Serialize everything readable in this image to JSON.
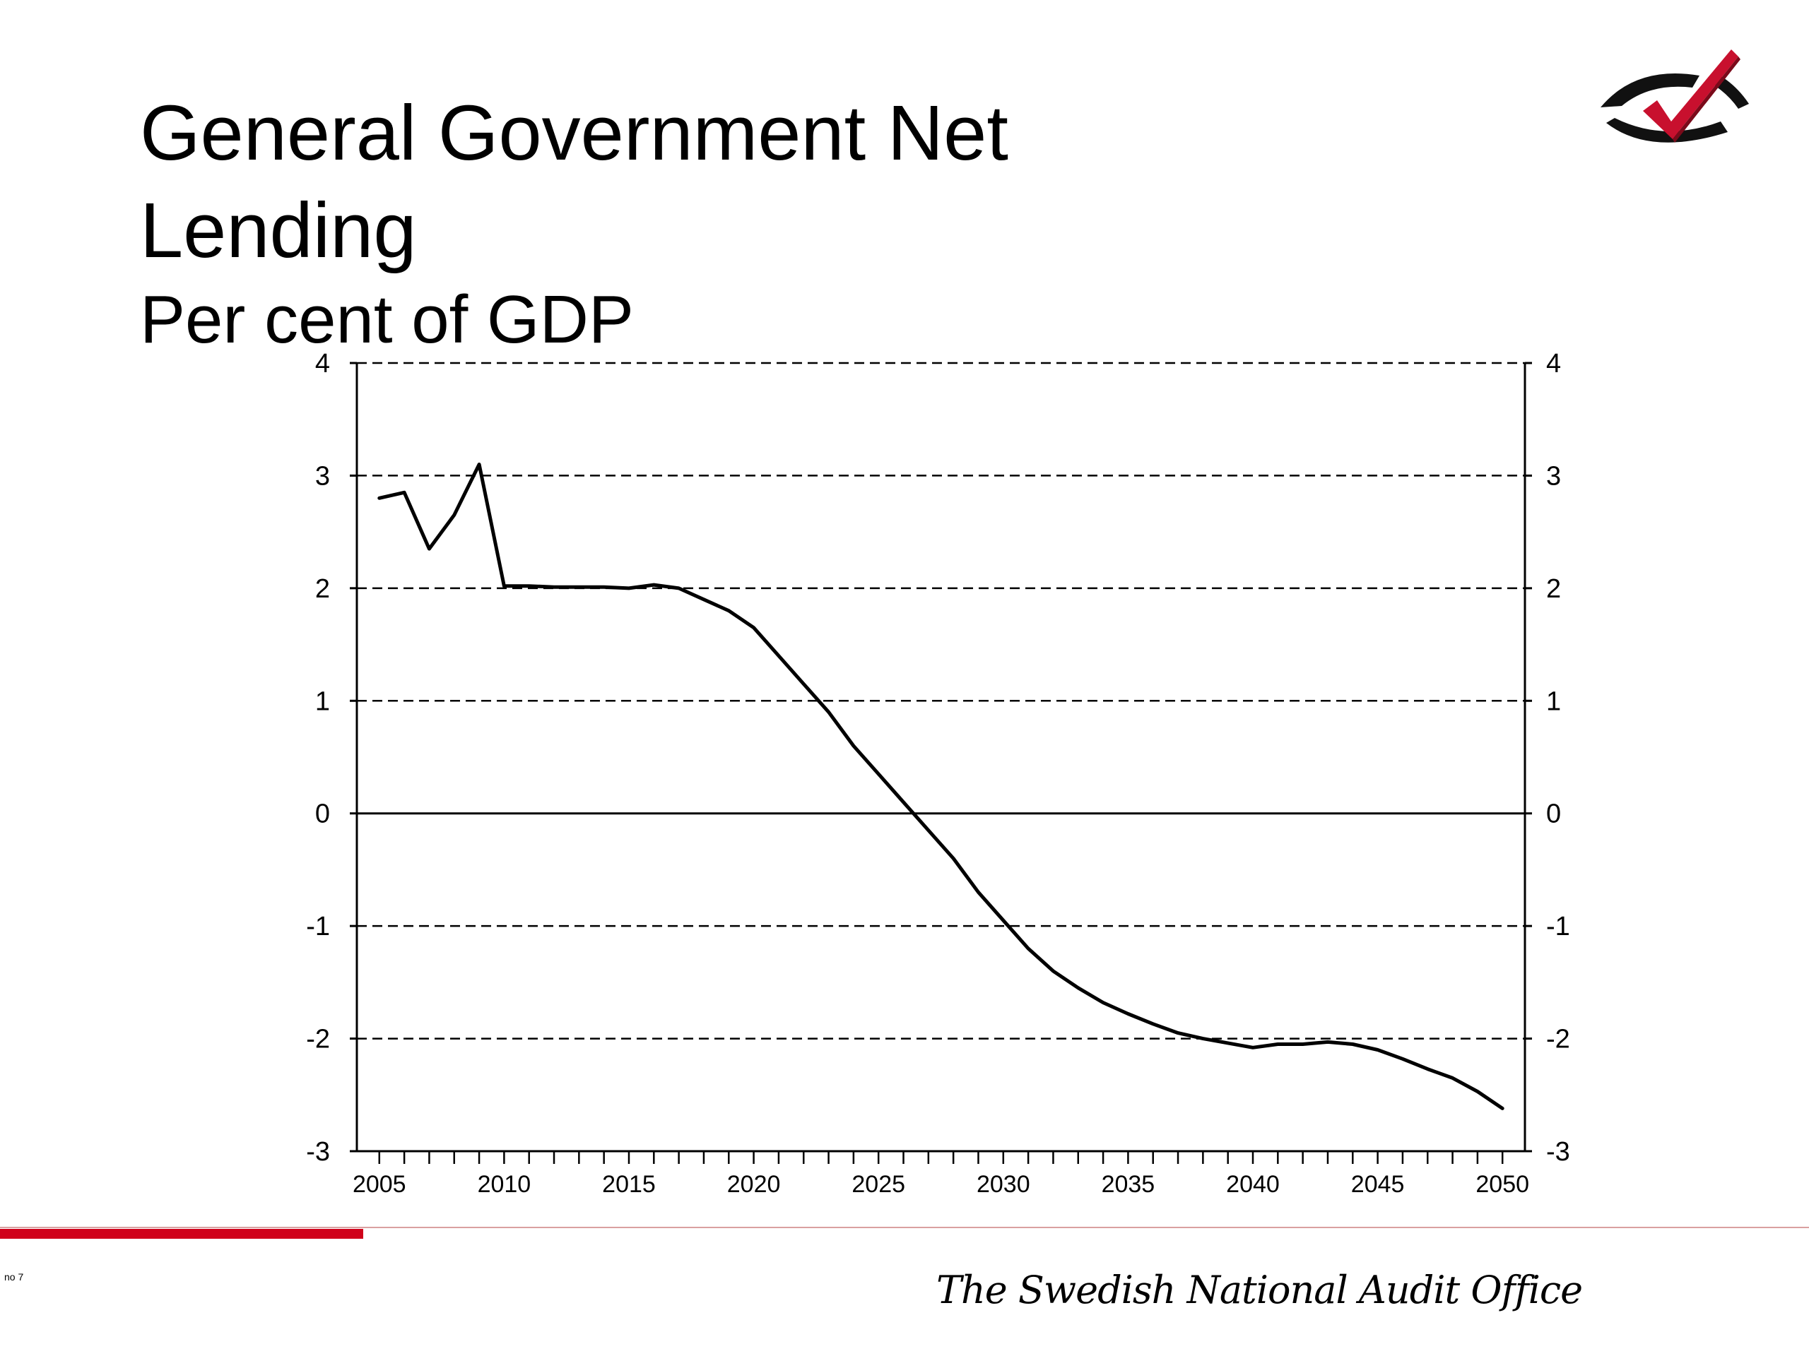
{
  "slide": {
    "title_line1": "General Government Net",
    "title_line2": "Lending",
    "subtitle": "Per cent of GDP",
    "footer_org": "The Swedish National Audit Office",
    "page_number": "no 7",
    "accent_color": "#d0021b"
  },
  "logo": {
    "icon": "eye-checkmark-logo"
  },
  "chart_data": {
    "type": "line",
    "title": "General Government Net Lending",
    "subtitle": "Per cent of GDP",
    "xlabel": "",
    "ylabel": "",
    "xlim": [
      2004.1,
      2050.9
    ],
    "ylim": [
      -3,
      4
    ],
    "x_ticks": [
      2005,
      2010,
      2015,
      2020,
      2025,
      2030,
      2035,
      2040,
      2045,
      2050
    ],
    "y_ticks": [
      -3,
      -2,
      -1,
      0,
      1,
      2,
      3,
      4
    ],
    "y_axis_both_sides": true,
    "grid": "horizontal dashed",
    "legend": "none",
    "series": [
      {
        "color": "#000000",
        "x": [
          2005,
          2006,
          2007,
          2008,
          2009,
          2010,
          2011,
          2012,
          2013,
          2014,
          2015,
          2016,
          2017,
          2018,
          2019,
          2020,
          2021,
          2022,
          2023,
          2024,
          2025,
          2026,
          2027,
          2028,
          2029,
          2030,
          2031,
          2032,
          2033,
          2034,
          2035,
          2036,
          2037,
          2038,
          2039,
          2040,
          2041,
          2042,
          2043,
          2044,
          2045,
          2046,
          2047,
          2048,
          2049,
          2050
        ],
        "values": [
          2.8,
          2.85,
          2.35,
          2.65,
          3.1,
          2.02,
          2.02,
          2.01,
          2.01,
          2.01,
          2.0,
          2.03,
          2.0,
          1.9,
          1.8,
          1.65,
          1.4,
          1.15,
          0.9,
          0.6,
          0.35,
          0.1,
          -0.15,
          -0.4,
          -0.7,
          -0.95,
          -1.2,
          -1.4,
          -1.55,
          -1.68,
          -1.78,
          -1.87,
          -1.95,
          -2.0,
          -2.04,
          -2.08,
          -2.05,
          -2.05,
          -2.03,
          -2.05,
          -2.1,
          -2.18,
          -2.27,
          -2.35,
          -2.47,
          -2.62
        ]
      }
    ]
  }
}
